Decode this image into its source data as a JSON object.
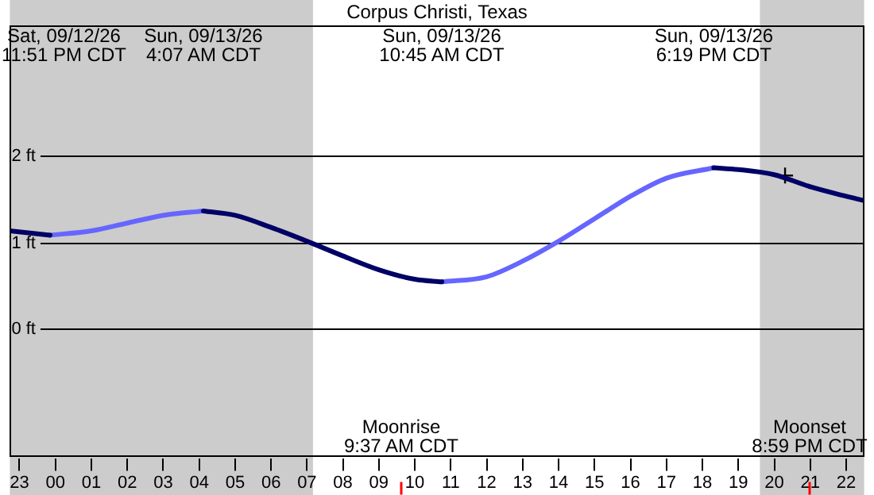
{
  "chart_data": {
    "type": "line",
    "title": "Corpus Christi, Texas",
    "x": [
      "--09-12T22:44",
      "--09-12T23:51",
      "--09-13T01:00",
      "--09-13T02:00",
      "--09-13T03:00",
      "--09-13T04:07",
      "--09-13T05:00",
      "--09-13T06:00",
      "--09-13T07:00",
      "--09-13T08:00",
      "--09-13T09:00",
      "--09-13T10:00",
      "--09-13T10:45",
      "--09-13T12:00",
      "--09-13T13:00",
      "--09-13T14:00",
      "--09-13T15:00",
      "--09-13T16:00",
      "--09-13T17:00",
      "--09-13T18:19",
      "--09-13T19:00",
      "--09-13T20:00",
      "--09-13T21:00",
      "--09-13T22:00",
      "--09-13T22:30"
    ],
    "series": [
      {
        "color": "#000066",
        "values": [
          1.13,
          1.08,
          null,
          null,
          null,
          1.36,
          1.31,
          1.17,
          1.01,
          0.84,
          0.68,
          0.57,
          0.54,
          null,
          null,
          null,
          null,
          null,
          null,
          1.86,
          1.84,
          1.78,
          1.64,
          1.53,
          1.48
        ]
      },
      {
        "color": "#6666ff",
        "values": [
          null,
          1.08,
          1.13,
          1.22,
          1.31,
          1.36,
          null,
          null,
          null,
          null,
          null,
          null,
          0.54,
          0.6,
          0.78,
          1.01,
          1.27,
          1.53,
          1.74,
          1.86,
          null,
          null,
          null,
          null,
          null
        ]
      },
      {
        "type": "scatter",
        "x": [
          "--09-13T20:18"
        ],
        "values": [
          1.77
        ],
        "color": "#000000",
        "marker": "cross"
      }
    ],
    "xlim": [
      "--09-12T22:44",
      "--09-13T22:30"
    ],
    "xticks": [
      {
        "value": "--09-12T23:00",
        "label": "23"
      },
      {
        "value": "--09-13T00:00",
        "label": "00"
      },
      {
        "value": "--09-13T01:00",
        "label": "01"
      },
      {
        "value": "--09-13T02:00",
        "label": "02"
      },
      {
        "value": "--09-13T03:00",
        "label": "03"
      },
      {
        "value": "--09-13T04:00",
        "label": "04"
      },
      {
        "value": "--09-13T05:00",
        "label": "05"
      },
      {
        "value": "--09-13T06:00",
        "label": "06"
      },
      {
        "value": "--09-13T07:00",
        "label": "07"
      },
      {
        "value": "--09-13T08:00",
        "label": "08"
      },
      {
        "value": "--09-13T09:00",
        "label": "09"
      },
      {
        "value": "--09-13T10:00",
        "label": "10"
      },
      {
        "value": "--09-13T11:00",
        "label": "11"
      },
      {
        "value": "--09-13T12:00",
        "label": "12"
      },
      {
        "value": "--09-13T13:00",
        "label": "13"
      },
      {
        "value": "--09-13T14:00",
        "label": "14"
      },
      {
        "value": "--09-13T15:00",
        "label": "15"
      },
      {
        "value": "--09-13T16:00",
        "label": "16"
      },
      {
        "value": "--09-13T17:00",
        "label": "17"
      },
      {
        "value": "--09-13T18:00",
        "label": "18"
      },
      {
        "value": "--09-13T19:00",
        "label": "19"
      },
      {
        "value": "--09-13T20:00",
        "label": "20"
      },
      {
        "value": "--09-13T21:00",
        "label": "21"
      },
      {
        "value": "--09-13T22:00",
        "label": "22"
      }
    ],
    "ylim": [
      -1.5,
      3.5
    ],
    "yticks": [
      {
        "value": 0,
        "label": "0 ft"
      },
      {
        "value": 1,
        "label": "1 ft"
      },
      {
        "value": 2,
        "label": "2 ft"
      }
    ],
    "grid": "y",
    "bands": [
      {
        "axis": "x",
        "from": "--09-12T22:44",
        "to": "--09-13T07:10",
        "color": "#cccccc"
      },
      {
        "axis": "x",
        "from": "--09-13T19:36",
        "to": "--09-13T22:30",
        "color": "#cccccc"
      }
    ],
    "ref_lines": [
      {
        "axis": "x",
        "value": "--09-13T09:37",
        "label": "Moonrise\n9:37 AM CDT",
        "color": "#ff0000"
      },
      {
        "axis": "x",
        "value": "--09-13T20:59",
        "label": "Moonset\n8:59 PM CDT",
        "color": "#ff0000"
      }
    ],
    "annotations": [
      "Sat, 09/12/26\n11:51 PM CDT",
      "Sun, 09/13/26\n4:07 AM CDT",
      "Sun, 09/13/26\n10:45 AM CDT",
      "Sun, 09/13/26\n6:19 PM CDT"
    ]
  }
}
